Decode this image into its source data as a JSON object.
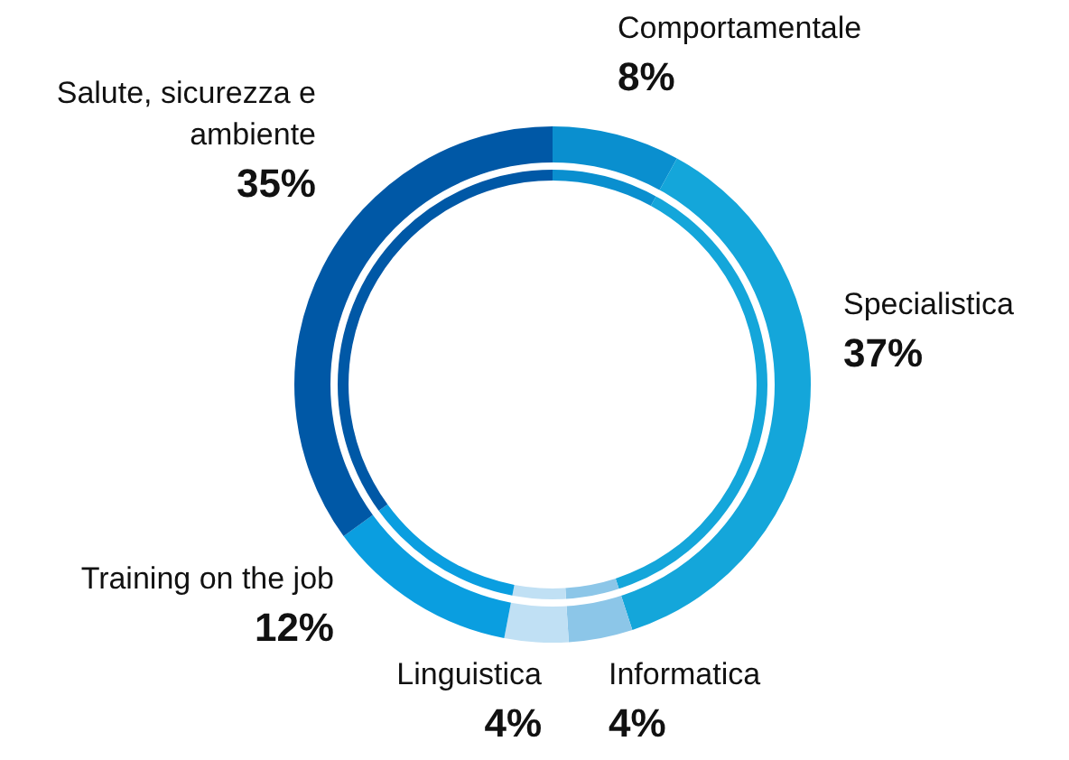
{
  "chart_data": {
    "type": "donut",
    "categories": [
      "Comportamentale",
      "Specialistica",
      "Informatica",
      "Linguistica",
      "Training on the job",
      "Salute, sicurezza e ambiente"
    ],
    "values": [
      8,
      37,
      4,
      4,
      12,
      35
    ],
    "colors": [
      "#0a8fcf",
      "#14a6da",
      "#8cc6e8",
      "#c0e0f4",
      "#0a9ee0",
      "#0058a6"
    ],
    "value_labels": [
      "8%",
      "37%",
      "4%",
      "4%",
      "12%",
      "35%"
    ],
    "legend": false
  }
}
